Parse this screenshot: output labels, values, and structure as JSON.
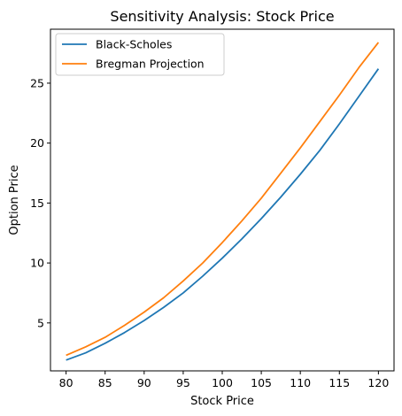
{
  "chart_data": {
    "type": "line",
    "title": "Sensitivity Analysis: Stock Price",
    "xlabel": "Stock Price",
    "ylabel": "Option Price",
    "xlim": [
      78,
      122
    ],
    "ylim": [
      1.0,
      29.5
    ],
    "xticks": [
      80,
      85,
      90,
      95,
      100,
      105,
      110,
      115,
      120
    ],
    "yticks": [
      5,
      10,
      15,
      20,
      25
    ],
    "grid": false,
    "legend_position": "top-left",
    "x": [
      80,
      82.5,
      85,
      87.5,
      90,
      92.5,
      95,
      97.5,
      100,
      102.5,
      105,
      107.5,
      110,
      112.5,
      115,
      117.5,
      120
    ],
    "series": [
      {
        "name": "Black-Scholes",
        "color": "#1f77b4",
        "values": [
          1.9,
          2.5,
          3.3,
          4.2,
          5.2,
          6.3,
          7.5,
          8.9,
          10.4,
          12.0,
          13.7,
          15.5,
          17.4,
          19.4,
          21.6,
          23.9,
          26.2
        ]
      },
      {
        "name": "Bregman Projection",
        "color": "#ff7f0e",
        "values": [
          2.3,
          3.0,
          3.8,
          4.8,
          5.9,
          7.1,
          8.5,
          10.0,
          11.7,
          13.5,
          15.4,
          17.5,
          19.6,
          21.8,
          24.0,
          26.3,
          28.4
        ]
      }
    ]
  }
}
